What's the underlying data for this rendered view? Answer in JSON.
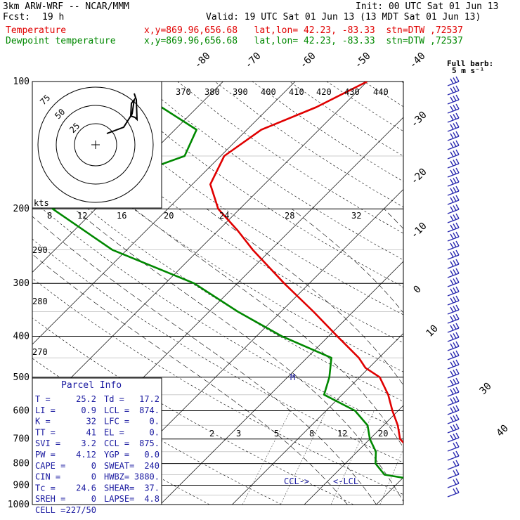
{
  "header": {
    "model": "3km ARW-WRF -- NCAR/MMM",
    "init": "Init: 00 UTC Sat 01 Jun 13",
    "fcst_label": "Fcst:",
    "fcst_value": "19 h",
    "valid": "Valid: 19 UTC Sat 01 Jun 13 (13 MDT Sat 01 Jun 13)",
    "temperature_label": "Temperature",
    "dewpoint_label": "Dewpoint temperature",
    "location_info": "x,y=869.96,656.68   lat,lon= 42.23, -83.33  stn=DTW ,72537"
  },
  "colors": {
    "temperature": "#e00000",
    "dewpoint": "#008800",
    "parcel_text": "#1a1aa0",
    "wind": "#2a2ab0"
  },
  "chart_data": {
    "type": "line",
    "title": "",
    "ylabel": "",
    "xlabel": "",
    "y_scale": "log-pressure",
    "ylim": [
      1000,
      100
    ],
    "pressure_ticks": [
      "100",
      "200",
      "300",
      "400",
      "500",
      "600",
      "700",
      "800",
      "900",
      "1000"
    ],
    "isotherm_labels": [
      "-80",
      "-70",
      "-60",
      "-50",
      "-40",
      "-30",
      "-20",
      "-10",
      "0",
      "10",
      "30",
      "40"
    ],
    "theta_labels": [
      "370",
      "380",
      "390",
      "400",
      "410",
      "420",
      "430",
      "440",
      "290",
      "280",
      "270"
    ],
    "mixing_ratio_labels": [
      "8",
      "12",
      "16",
      "20",
      "24",
      "28",
      "32",
      "2",
      "3",
      "5",
      "8",
      "12",
      "20"
    ],
    "hodograph": {
      "units": "kts",
      "rings": [
        "25",
        "50",
        "75"
      ]
    },
    "wind_key": "Full barb:\n5 m s⁻¹",
    "annotations": {
      "ccl": "CCL->",
      "lcl": "<-LCL",
      "m_marker": "M"
    },
    "series": [
      {
        "name": "Temperature",
        "pressure": [
          1000,
          975,
          950,
          925,
          900,
          875,
          850,
          800,
          750,
          700,
          650,
          600,
          550,
          500,
          475,
          450,
          400,
          350,
          300,
          250,
          225,
          200,
          175,
          150,
          130,
          115,
          100
        ],
        "temperature": [
          25.2,
          23.0,
          20.5,
          18.0,
          16.4,
          14.8,
          13.5,
          10.8,
          7.6,
          4.2,
          2.0,
          -0.8,
          -3.6,
          -7.2,
          -10.5,
          -12.8,
          -18.8,
          -25.5,
          -33.5,
          -42.5,
          -47.3,
          -53.0,
          -57.5,
          -59.5,
          -58.0,
          -53.5,
          -50.0
        ]
      },
      {
        "name": "Dewpoint temperature",
        "pressure": [
          1000,
          975,
          950,
          925,
          900,
          875,
          850,
          800,
          750,
          700,
          650,
          600,
          550,
          500,
          450,
          400,
          350,
          300,
          250,
          200,
          175,
          150,
          130,
          115,
          100
        ],
        "dewpoint": [
          17.2,
          16.7,
          16.1,
          15.0,
          14.0,
          12.2,
          7.0,
          4.2,
          2.6,
          0.0,
          -2.2,
          -6.0,
          -12.5,
          -14.2,
          -16.6,
          -26.5,
          -36.0,
          -46.0,
          -62.0,
          -76.0,
          -72.0,
          -65.0,
          -67.0,
          -75.0,
          -80.0
        ]
      }
    ]
  },
  "parcel_info": {
    "title": "Parcel Info",
    "rows": [
      [
        "T  =",
        "25.2",
        "Td =",
        "17.2"
      ],
      [
        "LI =",
        "0.9",
        "LCL =",
        "874."
      ],
      [
        "K  =",
        "32",
        "LFC =",
        "0."
      ],
      [
        "TT =",
        "41",
        "EL  =",
        "0."
      ],
      [
        "SVI =",
        "3.2",
        "CCL =",
        "875."
      ],
      [
        "PW =",
        "4.12",
        "YGP =",
        "0.0"
      ],
      [
        "CAPE =",
        "0",
        "SWEAT=",
        "240"
      ],
      [
        "CIN =",
        "0",
        "HWBZ=",
        "3880."
      ],
      [
        "Tc =",
        "24.6",
        "SHEAR=",
        "37."
      ],
      [
        "SREH =",
        "0",
        "LAPSE=",
        "4.8"
      ],
      [
        "CELL =",
        "227/50",
        "",
        ""
      ]
    ]
  }
}
